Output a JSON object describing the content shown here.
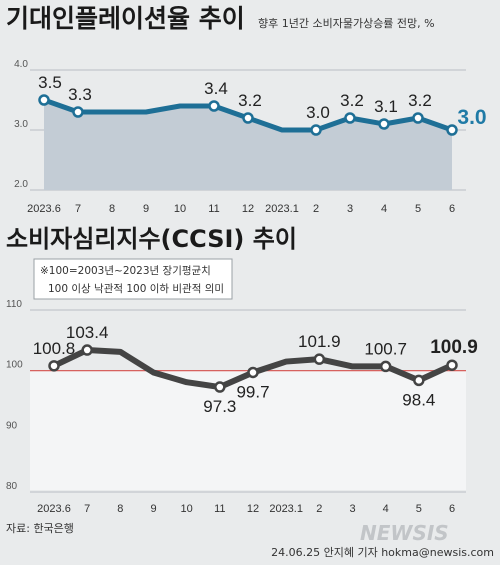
{
  "header": {
    "title1": "기대인플레이션율 추이",
    "subtitle1": "향후 1년간 소비자물가상승률 전망, %",
    "title2": "소비자심리지수(CCSI) 추이",
    "note_line1": "※100=2003년~2023년 장기평균치",
    "note_line2": "100 이상 낙관적 100 이하 비관적 의미"
  },
  "footer": {
    "source": "자료: 한국은행",
    "credit": "24.06.25 안지혜 기자 hokma@newsis.com",
    "watermark": "NEWSIS"
  },
  "colors": {
    "line1": "#1e6f96",
    "area1": "#c3ccd5",
    "line2": "#444444",
    "ref": "#d9534f",
    "accent": "#1f7aa6"
  },
  "chart_data": [
    {
      "type": "area",
      "title": "기대인플레이션율 추이",
      "categories": [
        "2023.6",
        "7",
        "8",
        "9",
        "10",
        "11",
        "12",
        "2023.1",
        "2",
        "3",
        "4",
        "5",
        "6"
      ],
      "values": [
        3.5,
        3.3,
        3.3,
        3.3,
        3.4,
        3.4,
        3.2,
        3.0,
        3.0,
        3.2,
        3.1,
        3.2,
        3.0
      ],
      "labels": [
        "3.5",
        "3.3",
        "",
        "",
        "",
        "3.4",
        "3.2",
        "",
        "3.0",
        "3.2",
        "3.1",
        "3.2",
        "3.0"
      ],
      "ylim": [
        2.0,
        4.0
      ],
      "yticks": [
        "2.0",
        "3.0",
        "4.0"
      ],
      "grid": true
    },
    {
      "type": "line",
      "title": "소비자심리지수(CCSI) 추이",
      "categories": [
        "2023.6",
        "7",
        "8",
        "9",
        "10",
        "11",
        "12",
        "2023.1",
        "2",
        "3",
        "4",
        "5",
        "6"
      ],
      "values": [
        100.8,
        103.4,
        103.1,
        99.7,
        98.1,
        97.3,
        99.7,
        101.5,
        101.9,
        100.7,
        100.7,
        98.4,
        100.9
      ],
      "labels": [
        "100.8",
        "103.4",
        "",
        "",
        "",
        "97.3",
        "99.7",
        "",
        "101.9",
        "",
        "100.7",
        "98.4",
        "100.9"
      ],
      "ylim": [
        80,
        110
      ],
      "yticks": [
        "80",
        "90",
        "100",
        "110"
      ],
      "reference_line": 100,
      "grid": true
    }
  ]
}
